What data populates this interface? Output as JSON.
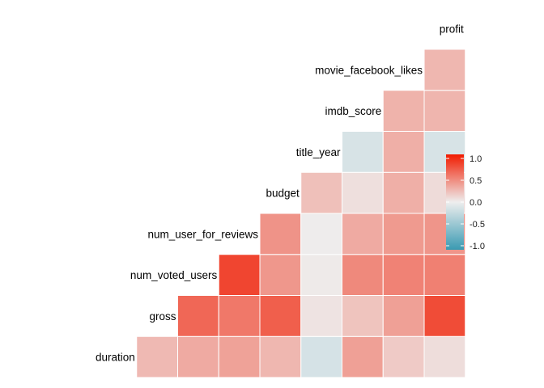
{
  "chart_data": {
    "type": "heatmap",
    "title": "",
    "variables": [
      "duration",
      "gross",
      "num_voted_users",
      "num_user_for_reviews",
      "budget",
      "title_year",
      "imdb_score",
      "movie_facebook_likes",
      "profit"
    ],
    "matrix": [
      [
        null,
        null,
        null,
        null,
        null,
        null,
        null,
        null,
        null
      ],
      [
        0.25,
        null,
        null,
        null,
        null,
        null,
        null,
        null,
        null
      ],
      [
        0.32,
        0.64,
        null,
        null,
        null,
        null,
        null,
        null,
        null
      ],
      [
        0.36,
        0.56,
        0.8,
        null,
        null,
        null,
        null,
        null,
        null
      ],
      [
        0.26,
        0.68,
        0.41,
        0.43,
        null,
        null,
        null,
        null,
        null
      ],
      [
        -0.14,
        0.05,
        0.02,
        0.01,
        0.22,
        null,
        null,
        null,
        null
      ],
      [
        0.37,
        0.2,
        0.48,
        0.32,
        0.07,
        -0.13,
        null,
        null,
        null
      ],
      [
        0.17,
        0.37,
        0.51,
        0.4,
        0.3,
        0.3,
        0.28,
        null,
        null
      ],
      [
        0.08,
        0.77,
        0.52,
        0.42,
        0.09,
        -0.13,
        0.27,
        0.26,
        null
      ]
    ],
    "colorbar": {
      "limits": [
        -1,
        1
      ],
      "ticks": [
        "1.0",
        "0.5",
        "0.0",
        "-0.5",
        "-1.0"
      ],
      "low_color": "#3A9AB2",
      "mid_color": "#EEEEEE",
      "high_color": "#F11B00"
    },
    "legend_position": "right"
  }
}
